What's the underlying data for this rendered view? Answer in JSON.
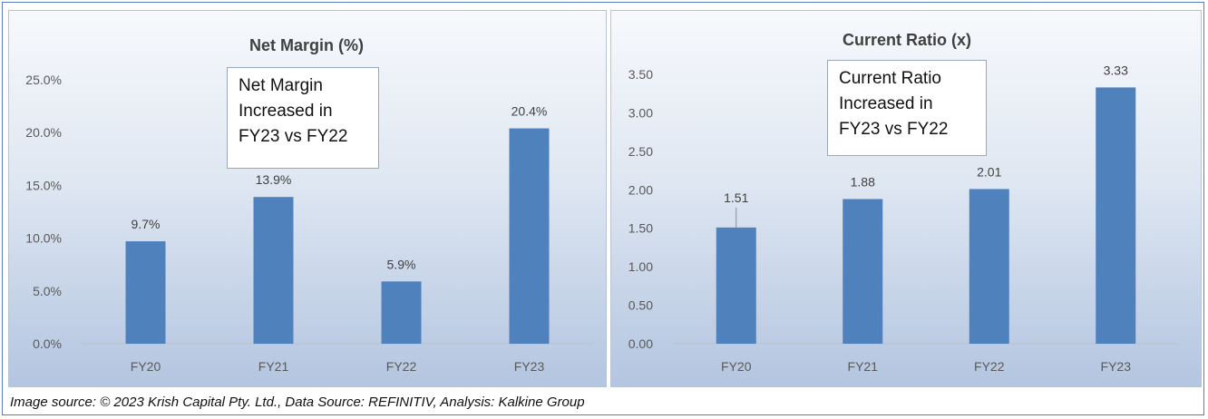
{
  "chart_data": [
    {
      "type": "bar",
      "title": "Net Margin (%)",
      "categories": [
        "FY20",
        "FY21",
        "FY22",
        "FY23"
      ],
      "values": [
        9.7,
        13.9,
        5.9,
        20.4
      ],
      "data_labels": [
        "9.7%",
        "13.9%",
        "5.9%",
        "20.4%"
      ],
      "yticks": [
        "0.0%",
        "5.0%",
        "10.0%",
        "15.0%",
        "20.0%",
        "25.0%"
      ],
      "ylim": [
        0,
        25
      ],
      "grid": false,
      "bar_color": "#4f81bd",
      "annotation": "Net Margin\nIncreased in\nFY23 vs FY22"
    },
    {
      "type": "bar",
      "title": "Current Ratio (x)",
      "categories": [
        "FY20",
        "FY21",
        "FY22",
        "FY23"
      ],
      "values": [
        1.51,
        1.88,
        2.01,
        3.33
      ],
      "data_labels": [
        "1.51",
        "1.88",
        "2.01",
        "3.33"
      ],
      "yticks": [
        "0.00",
        "0.50",
        "1.00",
        "1.50",
        "2.00",
        "2.50",
        "3.00",
        "3.50"
      ],
      "ylim": [
        0,
        3.5
      ],
      "grid": false,
      "bar_color": "#4f81bd",
      "annotation": "Current Ratio\nIncreased in\nFY23 vs FY22"
    }
  ],
  "footer": "Image source: © 2023 Krish Capital Pty. Ltd., Data Source: REFINITIV, Analysis: Kalkine Group"
}
